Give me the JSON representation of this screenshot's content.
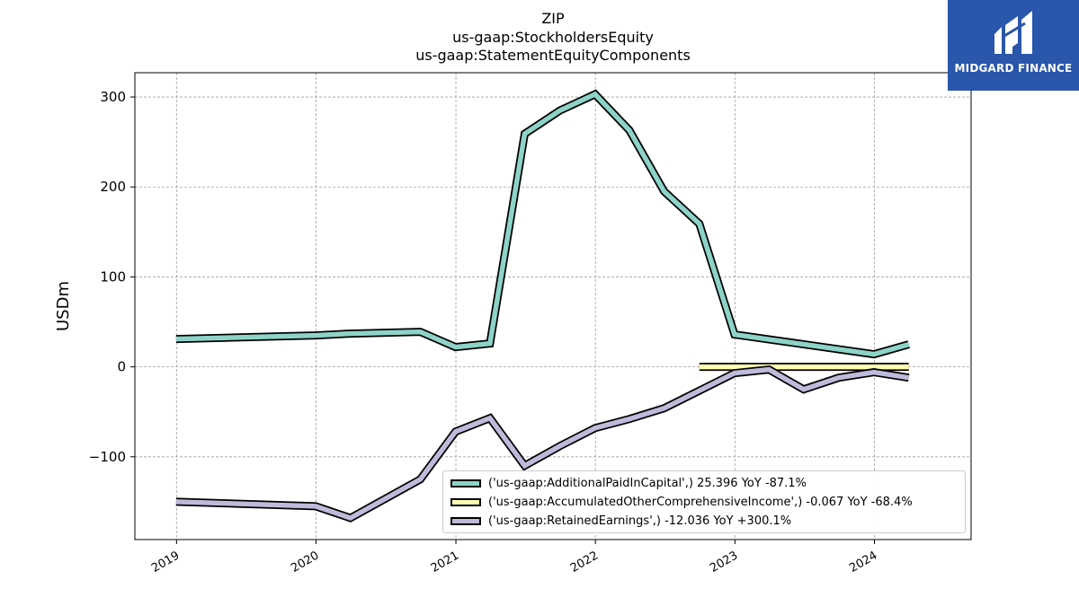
{
  "header": {
    "title_lines": [
      "ZIP",
      "us-gaap:StockholdersEquity",
      "us-gaap:StatementEquityComponents"
    ]
  },
  "logo": {
    "text": "MIDGARD FINANCE",
    "color": "#2a56ab"
  },
  "chart_data": {
    "type": "line",
    "ylabel": "USDm",
    "xlabel": "",
    "ylim": [
      -192,
      327
    ],
    "xlim": [
      "2018-09-14",
      "2024-09-10"
    ],
    "yticks": [
      300,
      200,
      100,
      0,
      -100
    ],
    "ytick_labels": [
      "300",
      "200",
      "100",
      "0",
      "−100"
    ],
    "xticks": [
      "2019-01-01",
      "2020-01-01",
      "2021-01-01",
      "2022-01-01",
      "2023-01-01",
      "2024-01-01"
    ],
    "xtick_labels": [
      "2019",
      "2020",
      "2021",
      "2022",
      "2023",
      "2024"
    ],
    "grid": true,
    "legend_position": "lower-right",
    "series": [
      {
        "name": "('us-gaap:AdditionalPaidInCapital',) 25.396 YoY -87.1%",
        "color": "#8dd3c7",
        "x": [
          "2018-12-31",
          "2019-12-31",
          "2020-03-31",
          "2020-09-30",
          "2020-12-31",
          "2021-03-31",
          "2021-06-30",
          "2021-09-30",
          "2021-12-31",
          "2022-03-31",
          "2022-06-30",
          "2022-09-30",
          "2022-12-31",
          "2023-12-31",
          "2024-03-31"
        ],
        "y": [
          31,
          35,
          37,
          39,
          22,
          26,
          259,
          285,
          303,
          263,
          195,
          159,
          36,
          14,
          25
        ]
      },
      {
        "name": "('us-gaap:AccumulatedOtherComprehensiveIncome',) -0.067 YoY -68.4%",
        "color": "#ffffb3",
        "x": [
          "2022-09-30",
          "2024-03-31"
        ],
        "y": [
          0,
          0
        ]
      },
      {
        "name": "('us-gaap:RetainedEarnings',) -12.036 YoY +300.1%",
        "color": "#bebada",
        "x": [
          "2018-12-31",
          "2019-12-31",
          "2020-03-31",
          "2020-09-30",
          "2020-12-31",
          "2021-03-31",
          "2021-06-30",
          "2021-09-30",
          "2021-12-31",
          "2022-03-31",
          "2022-06-30",
          "2022-12-31",
          "2023-03-31",
          "2023-06-30",
          "2023-09-30",
          "2023-12-31",
          "2024-03-31"
        ],
        "y": [
          -150,
          -155,
          -168,
          -125,
          -72,
          -57,
          -110,
          -88,
          -68,
          -58,
          -46,
          -7,
          -3,
          -25,
          -12,
          -6,
          -12
        ]
      }
    ]
  }
}
